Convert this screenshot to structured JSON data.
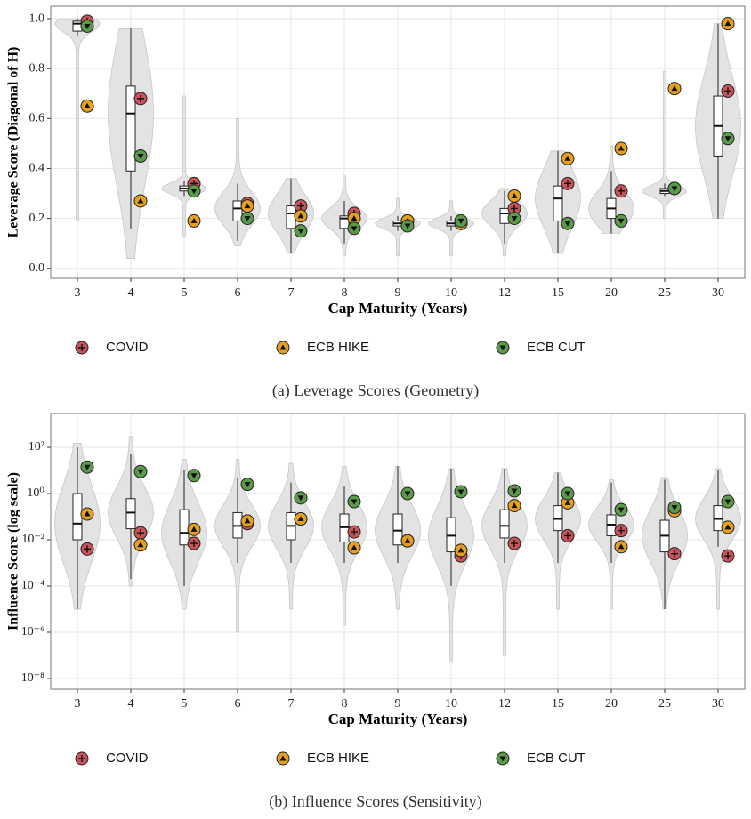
{
  "chart_data": [
    {
      "type": "violin",
      "x_label": "Cap Maturity (Years)",
      "y_label": "Leverage Score (Diagonal of H)",
      "caption": "(a) Leverage Scores (Geometry)",
      "categories": [
        "3",
        "4",
        "5",
        "6",
        "7",
        "8",
        "9",
        "10",
        "12",
        "15",
        "20",
        "25",
        "30"
      ],
      "ylim": [
        -0.04,
        1.05
      ],
      "log_scale": false,
      "grid": true,
      "yticks": [
        {
          "value": 0,
          "label": "0.0"
        },
        {
          "value": 0.2,
          "label": "0.2"
        },
        {
          "value": 0.4,
          "label": "0.4"
        },
        {
          "value": 0.6,
          "label": "0.6"
        },
        {
          "value": 0.8,
          "label": "0.8"
        },
        {
          "value": 1,
          "label": "1.0"
        }
      ],
      "boxes": [
        {
          "q1": 0.95,
          "median": 0.98,
          "q3": 0.99,
          "whisker_low": 0.93,
          "whisker_high": 1.0,
          "min": 0.19,
          "max": 1.0
        },
        {
          "q1": 0.39,
          "median": 0.62,
          "q3": 0.73,
          "whisker_low": 0.16,
          "whisker_high": 0.96,
          "min": 0.04,
          "max": 0.96
        },
        {
          "q1": 0.31,
          "median": 0.32,
          "q3": 0.33,
          "whisker_low": 0.29,
          "whisker_high": 0.35,
          "min": 0.13,
          "max": 0.69
        },
        {
          "q1": 0.19,
          "median": 0.24,
          "q3": 0.27,
          "whisker_low": 0.11,
          "whisker_high": 0.34,
          "min": 0.09,
          "max": 0.6
        },
        {
          "q1": 0.16,
          "median": 0.22,
          "q3": 0.25,
          "whisker_low": 0.06,
          "whisker_high": 0.36,
          "min": 0.06,
          "max": 0.36
        },
        {
          "q1": 0.16,
          "median": 0.2,
          "q3": 0.21,
          "whisker_low": 0.1,
          "whisker_high": 0.27,
          "min": 0.05,
          "max": 0.37
        },
        {
          "q1": 0.17,
          "median": 0.18,
          "q3": 0.19,
          "whisker_low": 0.15,
          "whisker_high": 0.21,
          "min": 0.05,
          "max": 0.28
        },
        {
          "q1": 0.17,
          "median": 0.18,
          "q3": 0.19,
          "whisker_low": 0.15,
          "whisker_high": 0.21,
          "min": 0.05,
          "max": 0.27
        },
        {
          "q1": 0.18,
          "median": 0.22,
          "q3": 0.24,
          "whisker_low": 0.1,
          "whisker_high": 0.31,
          "min": 0.05,
          "max": 0.32
        },
        {
          "q1": 0.19,
          "median": 0.28,
          "q3": 0.33,
          "whisker_low": 0.06,
          "whisker_high": 0.47,
          "min": 0.06,
          "max": 0.47
        },
        {
          "q1": 0.2,
          "median": 0.24,
          "q3": 0.28,
          "whisker_low": 0.14,
          "whisker_high": 0.39,
          "min": 0.14,
          "max": 0.49
        },
        {
          "q1": 0.3,
          "median": 0.31,
          "q3": 0.32,
          "whisker_low": 0.29,
          "whisker_high": 0.34,
          "min": 0.2,
          "max": 0.79
        },
        {
          "q1": 0.45,
          "median": 0.57,
          "q3": 0.69,
          "whisker_low": 0.2,
          "whisker_high": 0.98,
          "min": 0.2,
          "max": 0.98
        }
      ],
      "series": [
        {
          "name": "COVID",
          "color": "#c8545a",
          "marker": "plus",
          "values": [
            0.99,
            0.68,
            0.34,
            0.26,
            0.25,
            0.22,
            0.19,
            0.18,
            0.24,
            0.34,
            0.31,
            0.32,
            0.71
          ]
        },
        {
          "name": "ECB HIKE",
          "color": "#e6a021",
          "marker": "triangle-up",
          "values": [
            0.65,
            0.27,
            0.19,
            0.25,
            0.21,
            0.2,
            0.19,
            0.18,
            0.29,
            0.44,
            0.48,
            0.72,
            0.98
          ]
        },
        {
          "name": "ECB CUT",
          "color": "#5a9a48",
          "marker": "triangle-down",
          "values": [
            0.97,
            0.45,
            0.31,
            0.2,
            0.15,
            0.16,
            0.17,
            0.19,
            0.2,
            0.18,
            0.19,
            0.32,
            0.52
          ]
        }
      ]
    },
    {
      "type": "violin",
      "x_label": "Cap Maturity (Years)",
      "y_label": "Influence Score (log scale)",
      "caption": "(b) Influence Scores (Sensitivity)",
      "categories": [
        "3",
        "4",
        "5",
        "6",
        "7",
        "8",
        "9",
        "10",
        "12",
        "15",
        "20",
        "25",
        "30"
      ],
      "ylim": [
        3.45e-09,
        2900
      ],
      "log_scale": true,
      "grid": true,
      "yticks": [
        {
          "value": 100,
          "label": "10²"
        },
        {
          "value": 1,
          "label": "10⁰"
        },
        {
          "value": 0.01,
          "label": "10⁻²"
        },
        {
          "value": 0.0001,
          "label": "10⁻⁴"
        },
        {
          "value": 1e-06,
          "label": "10⁻⁶"
        },
        {
          "value": 1e-08,
          "label": "10⁻⁸"
        }
      ],
      "boxes": [
        {
          "q1": 0.01,
          "median": 0.05,
          "q3": 1.0,
          "whisker_low": 1e-05,
          "whisker_high": 100,
          "min": 1e-05,
          "max": 150
        },
        {
          "q1": 0.03,
          "median": 0.15,
          "q3": 0.6,
          "whisker_low": 0.0002,
          "whisker_high": 50,
          "min": 0.0001,
          "max": 300
        },
        {
          "q1": 0.006,
          "median": 0.02,
          "q3": 0.2,
          "whisker_low": 0.0001,
          "whisker_high": 10,
          "min": 1e-05,
          "max": 30
        },
        {
          "q1": 0.012,
          "median": 0.04,
          "q3": 0.15,
          "whisker_low": 0.001,
          "whisker_high": 5,
          "min": 1e-06,
          "max": 30
        },
        {
          "q1": 0.01,
          "median": 0.04,
          "q3": 0.15,
          "whisker_low": 0.001,
          "whisker_high": 3,
          "min": 1e-05,
          "max": 20
        },
        {
          "q1": 0.008,
          "median": 0.035,
          "q3": 0.13,
          "whisker_low": 0.001,
          "whisker_high": 2,
          "min": 2e-06,
          "max": 15
        },
        {
          "q1": 0.006,
          "median": 0.025,
          "q3": 0.13,
          "whisker_low": 0.001,
          "whisker_high": 15,
          "min": 1e-05,
          "max": 15
        },
        {
          "q1": 0.003,
          "median": 0.015,
          "q3": 0.09,
          "whisker_low": 0.0001,
          "whisker_high": 12,
          "min": 5e-08,
          "max": 12
        },
        {
          "q1": 0.012,
          "median": 0.04,
          "q3": 0.2,
          "whisker_low": 0.001,
          "whisker_high": 12,
          "min": 1e-07,
          "max": 12
        },
        {
          "q1": 0.025,
          "median": 0.08,
          "q3": 0.3,
          "whisker_low": 0.001,
          "whisker_high": 8,
          "min": 1e-05,
          "max": 8
        },
        {
          "q1": 0.015,
          "median": 0.045,
          "q3": 0.12,
          "whisker_low": 0.001,
          "whisker_high": 3,
          "min": 1e-05,
          "max": 4
        },
        {
          "q1": 0.003,
          "median": 0.015,
          "q3": 0.07,
          "whisker_low": 1e-05,
          "whisker_high": 4,
          "min": 1e-05,
          "max": 5
        },
        {
          "q1": 0.025,
          "median": 0.08,
          "q3": 0.3,
          "whisker_low": 0.005,
          "whisker_high": 10,
          "min": 1e-05,
          "max": 12
        }
      ],
      "series": [
        {
          "name": "COVID",
          "color": "#c8545a",
          "marker": "plus",
          "values": [
            0.004,
            0.02,
            0.007,
            0.05,
            0.08,
            0.022,
            0.009,
            0.002,
            0.007,
            0.015,
            0.025,
            0.0025,
            0.002
          ]
        },
        {
          "name": "ECB HIKE",
          "color": "#e6a021",
          "marker": "triangle-up",
          "values": [
            0.13,
            0.006,
            0.028,
            0.065,
            0.08,
            0.0045,
            0.009,
            0.0035,
            0.3,
            0.4,
            0.005,
            0.18,
            0.035
          ]
        },
        {
          "name": "ECB CUT",
          "color": "#5a9a48",
          "marker": "triangle-down",
          "values": [
            14,
            9,
            6,
            2.5,
            0.65,
            0.45,
            1.0,
            1.2,
            1.3,
            1.0,
            0.2,
            0.25,
            0.45
          ]
        }
      ]
    }
  ]
}
